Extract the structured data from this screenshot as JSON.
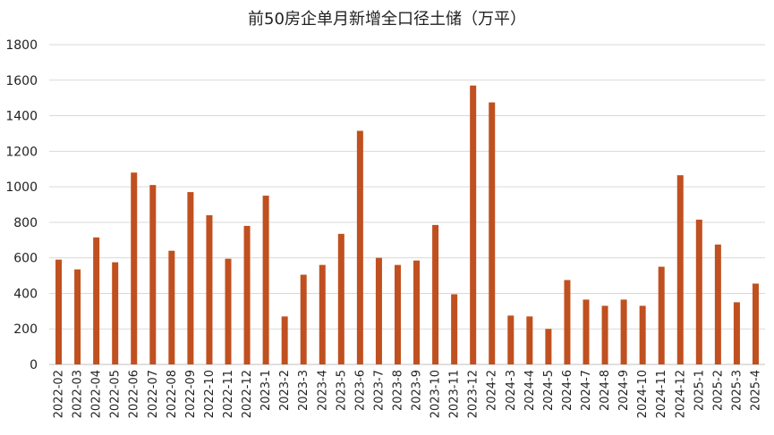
{
  "chart_data": {
    "type": "bar",
    "title": "前50房企单月新增全口径土储（万平）",
    "xlabel": "",
    "ylabel": "",
    "ylim": [
      0,
      1800
    ],
    "yticks": [
      0,
      200,
      400,
      600,
      800,
      1000,
      1200,
      1400,
      1600,
      1800
    ],
    "grid": true,
    "legend": "none",
    "bar_color": "#C0501F",
    "categories": [
      "2022-02",
      "2022-03",
      "2022-04",
      "2022-05",
      "2022-06",
      "2022-07",
      "2022-08",
      "2022-09",
      "2022-10",
      "2022-11",
      "2022-12",
      "2023-1",
      "2023-2",
      "2023-3",
      "2023-4",
      "2023-5",
      "2023-6",
      "2023-7",
      "2023-8",
      "2023-9",
      "2023-10",
      "2023-11",
      "2023-12",
      "2024-2",
      "2024-3",
      "2024-4",
      "2024-5",
      "2024-6",
      "2024-7",
      "2024-8",
      "2024-9",
      "2024-10",
      "2024-11",
      "2024-12",
      "2025-1",
      "2025-2",
      "2025-3",
      "2025-4"
    ],
    "values": [
      590,
      535,
      715,
      575,
      1080,
      1010,
      640,
      970,
      840,
      595,
      780,
      950,
      270,
      505,
      560,
      735,
      1315,
      600,
      560,
      585,
      785,
      395,
      1570,
      1475,
      275,
      270,
      200,
      475,
      365,
      330,
      365,
      330,
      550,
      1065,
      815,
      675,
      350,
      455
    ]
  }
}
